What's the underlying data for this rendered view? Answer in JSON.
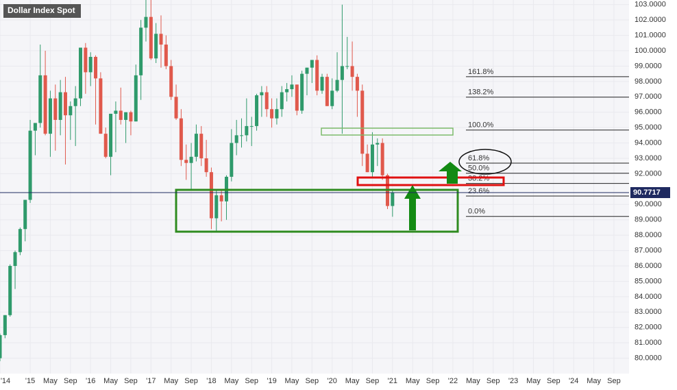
{
  "chart_data": {
    "type": "candlestick",
    "title": "Dollar Index Spot",
    "x": [
      "2014-07",
      "2014-08",
      "2014-09",
      "2014-10",
      "2014-11",
      "2014-12",
      "2015-01",
      "2015-02",
      "2015-03",
      "2015-04",
      "2015-05",
      "2015-06",
      "2015-07",
      "2015-08",
      "2015-09",
      "2015-10",
      "2015-11",
      "2015-12",
      "2016-01",
      "2016-02",
      "2016-03",
      "2016-04",
      "2016-05",
      "2016-06",
      "2016-07",
      "2016-08",
      "2016-09",
      "2016-10",
      "2016-11",
      "2016-12",
      "2017-01",
      "2017-02",
      "2017-03",
      "2017-04",
      "2017-05",
      "2017-06",
      "2017-07",
      "2017-08",
      "2017-09",
      "2017-10",
      "2017-11",
      "2017-12",
      "2018-01",
      "2018-02",
      "2018-03",
      "2018-04",
      "2018-05",
      "2018-06",
      "2018-07",
      "2018-08",
      "2018-09",
      "2018-10",
      "2018-11",
      "2018-12",
      "2019-01",
      "2019-02",
      "2019-03",
      "2019-04",
      "2019-05",
      "2019-06",
      "2019-07",
      "2019-08",
      "2019-09",
      "2019-10",
      "2019-11",
      "2019-12",
      "2020-01",
      "2020-02",
      "2020-03",
      "2020-04",
      "2020-05",
      "2020-06",
      "2020-07",
      "2020-08",
      "2020-09",
      "2020-10",
      "2020-11",
      "2020-12",
      "2021-01"
    ],
    "open": [
      80.0,
      81.5,
      82.8,
      86.0,
      86.9,
      88.4,
      90.3,
      94.8,
      95.3,
      98.4,
      94.6,
      96.9,
      95.5,
      97.3,
      95.8,
      96.4,
      96.9,
      100.2,
      98.6,
      99.6,
      98.2,
      94.6,
      93.1,
      95.9,
      96.1,
      95.5,
      96.0,
      95.4,
      98.4,
      101.5,
      102.2,
      99.5,
      101.1,
      100.4,
      99.0,
      97.0,
      95.6,
      92.9,
      92.7,
      93.1,
      94.6,
      93.0,
      92.1,
      89.1,
      90.6,
      90.2,
      91.8,
      94.0,
      94.5,
      94.5,
      95.1,
      95.1,
      97.1,
      97.3,
      96.2,
      95.6,
      96.2,
      97.3,
      97.5,
      97.8,
      96.1,
      98.5,
      98.9,
      99.4,
      97.4,
      98.3,
      96.4,
      97.4,
      98.1,
      99.0,
      99.0,
      98.3,
      97.4,
      93.3,
      92.1,
      93.9,
      94.0,
      91.9,
      89.9
    ],
    "high": [
      81.6,
      82.8,
      86.1,
      87.0,
      88.5,
      90.3,
      95.5,
      95.3,
      100.4,
      100.0,
      97.4,
      97.8,
      98.1,
      98.3,
      96.7,
      97.7,
      100.2,
      100.5,
      99.9,
      99.7,
      98.6,
      95.0,
      95.8,
      96.7,
      97.6,
      96.0,
      96.1,
      99.1,
      102.0,
      103.8,
      103.8,
      101.8,
      102.3,
      101.0,
      99.4,
      97.8,
      96.2,
      93.9,
      94.0,
      95.2,
      95.1,
      94.2,
      92.4,
      91.0,
      90.9,
      91.9,
      94.9,
      95.5,
      95.6,
      96.9,
      95.7,
      97.2,
      97.7,
      97.7,
      96.9,
      96.9,
      97.7,
      97.9,
      98.4,
      97.8,
      98.7,
      98.9,
      99.4,
      99.7,
      98.5,
      98.5,
      98.2,
      99.9,
      103.0,
      100.9,
      100.6,
      98.5,
      97.8,
      93.9,
      94.7,
      94.3,
      94.3,
      92.0,
      91.0
    ],
    "low": [
      79.8,
      81.3,
      82.7,
      84.5,
      86.7,
      87.6,
      90.1,
      93.2,
      95.0,
      94.5,
      93.1,
      93.5,
      94.5,
      92.6,
      94.2,
      93.8,
      96.4,
      97.2,
      97.7,
      95.2,
      94.6,
      93.0,
      91.9,
      93.4,
      95.2,
      94.0,
      94.5,
      95.4,
      96.8,
      100.6,
      99.4,
      99.2,
      98.9,
      98.8,
      96.8,
      95.5,
      92.5,
      91.6,
      91.0,
      92.8,
      92.5,
      91.8,
      88.4,
      88.2,
      88.9,
      89.0,
      91.5,
      93.2,
      93.7,
      94.1,
      93.8,
      94.8,
      95.7,
      95.7,
      95.0,
      95.2,
      95.7,
      96.7,
      97.0,
      95.8,
      95.9,
      97.1,
      97.9,
      97.1,
      97.2,
      96.4,
      96.2,
      97.3,
      94.6,
      98.8,
      97.4,
      95.7,
      92.5,
      92.1,
      91.7,
      92.5,
      91.6,
      89.7,
      89.2
    ],
    "close": [
      81.5,
      82.8,
      86.0,
      86.9,
      88.4,
      90.3,
      94.8,
      95.3,
      98.4,
      94.6,
      96.9,
      95.5,
      97.3,
      95.8,
      96.4,
      96.9,
      100.2,
      98.6,
      99.6,
      98.2,
      94.6,
      93.1,
      95.9,
      96.1,
      95.5,
      96.0,
      95.4,
      98.4,
      101.5,
      102.2,
      99.5,
      101.1,
      100.4,
      99.0,
      97.0,
      95.6,
      92.9,
      92.7,
      93.1,
      94.6,
      93.0,
      92.1,
      89.1,
      90.6,
      90.2,
      91.8,
      94.0,
      94.5,
      94.5,
      95.1,
      95.1,
      97.1,
      97.3,
      96.2,
      95.6,
      96.2,
      97.3,
      97.5,
      97.8,
      96.1,
      98.5,
      98.9,
      99.4,
      97.4,
      98.3,
      96.4,
      97.4,
      98.1,
      99.0,
      99.0,
      98.3,
      97.4,
      93.3,
      92.1,
      93.9,
      94.0,
      91.9,
      89.9,
      90.77
    ],
    "up_color": "#2f9a6b",
    "down_color": "#e0594c",
    "last_price": 90.7717,
    "fib_levels": [
      {
        "label": "161.8%",
        "value": 98.31
      },
      {
        "label": "138.2%",
        "value": 96.98
      },
      {
        "label": "100.0%",
        "value": 94.84
      },
      {
        "label": "61.8%",
        "value": 92.69
      },
      {
        "label": "50.0%",
        "value": 92.03
      },
      {
        "label": "38.2%",
        "value": 91.37
      },
      {
        "label": "23.6%",
        "value": 90.55
      },
      {
        "label": "0.0%",
        "value": 89.22
      }
    ],
    "xlim": [
      "2014-07",
      "2024-12"
    ],
    "xticks": [
      {
        "value": "2014-07",
        "label": "'14"
      },
      {
        "value": "2015-01",
        "label": "'15"
      },
      {
        "value": "2015-05",
        "label": "May"
      },
      {
        "value": "2015-09",
        "label": "Sep"
      },
      {
        "value": "2016-01",
        "label": "'16"
      },
      {
        "value": "2016-05",
        "label": "May"
      },
      {
        "value": "2016-09",
        "label": "Sep"
      },
      {
        "value": "2017-01",
        "label": "'17"
      },
      {
        "value": "2017-05",
        "label": "May"
      },
      {
        "value": "2017-09",
        "label": "Sep"
      },
      {
        "value": "2018-01",
        "label": "'18"
      },
      {
        "value": "2018-05",
        "label": "May"
      },
      {
        "value": "2018-09",
        "label": "Sep"
      },
      {
        "value": "2019-01",
        "label": "'19"
      },
      {
        "value": "2019-05",
        "label": "May"
      },
      {
        "value": "2019-09",
        "label": "Sep"
      },
      {
        "value": "2020-01",
        "label": "'20"
      },
      {
        "value": "2020-05",
        "label": "May"
      },
      {
        "value": "2020-09",
        "label": "Sep"
      },
      {
        "value": "2021-01",
        "label": "'21"
      },
      {
        "value": "2021-05",
        "label": "May"
      },
      {
        "value": "2021-09",
        "label": "Sep"
      },
      {
        "value": "2022-01",
        "label": "'22"
      },
      {
        "value": "2022-05",
        "label": "May"
      },
      {
        "value": "2022-09",
        "label": "Sep"
      },
      {
        "value": "2023-01",
        "label": "'23"
      },
      {
        "value": "2023-05",
        "label": "May"
      },
      {
        "value": "2023-09",
        "label": "Sep"
      },
      {
        "value": "2024-01",
        "label": "'24"
      },
      {
        "value": "2024-05",
        "label": "May"
      },
      {
        "value": "2024-09",
        "label": "Sep"
      }
    ],
    "ylim": [
      79.0,
      103.3
    ],
    "yticks": [
      {
        "value": 80,
        "label": "80.0000"
      },
      {
        "value": 81,
        "label": "81.0000"
      },
      {
        "value": 82,
        "label": "82.0000"
      },
      {
        "value": 83,
        "label": "83.0000"
      },
      {
        "value": 84,
        "label": "84.0000"
      },
      {
        "value": 85,
        "label": "85.0000"
      },
      {
        "value": 86,
        "label": "86.0000"
      },
      {
        "value": 87,
        "label": "87.0000"
      },
      {
        "value": 88,
        "label": "88.0000"
      },
      {
        "value": 89,
        "label": "89.0000"
      },
      {
        "value": 90,
        "label": "90.0000"
      },
      {
        "value": 92,
        "label": "92.0000"
      },
      {
        "value": 93,
        "label": "93.0000"
      },
      {
        "value": 94,
        "label": "94.0000"
      },
      {
        "value": 95,
        "label": "95.0000"
      },
      {
        "value": 96,
        "label": "96.0000"
      },
      {
        "value": 97,
        "label": "97.0000"
      },
      {
        "value": 98,
        "label": "98.0000"
      },
      {
        "value": 99,
        "label": "99.0000"
      },
      {
        "value": 100,
        "label": "100.0000"
      },
      {
        "value": 101,
        "label": "101.0000"
      },
      {
        "value": 102,
        "label": "102.0000"
      },
      {
        "value": 103,
        "label": "103.0000"
      }
    ],
    "grid": true
  }
}
